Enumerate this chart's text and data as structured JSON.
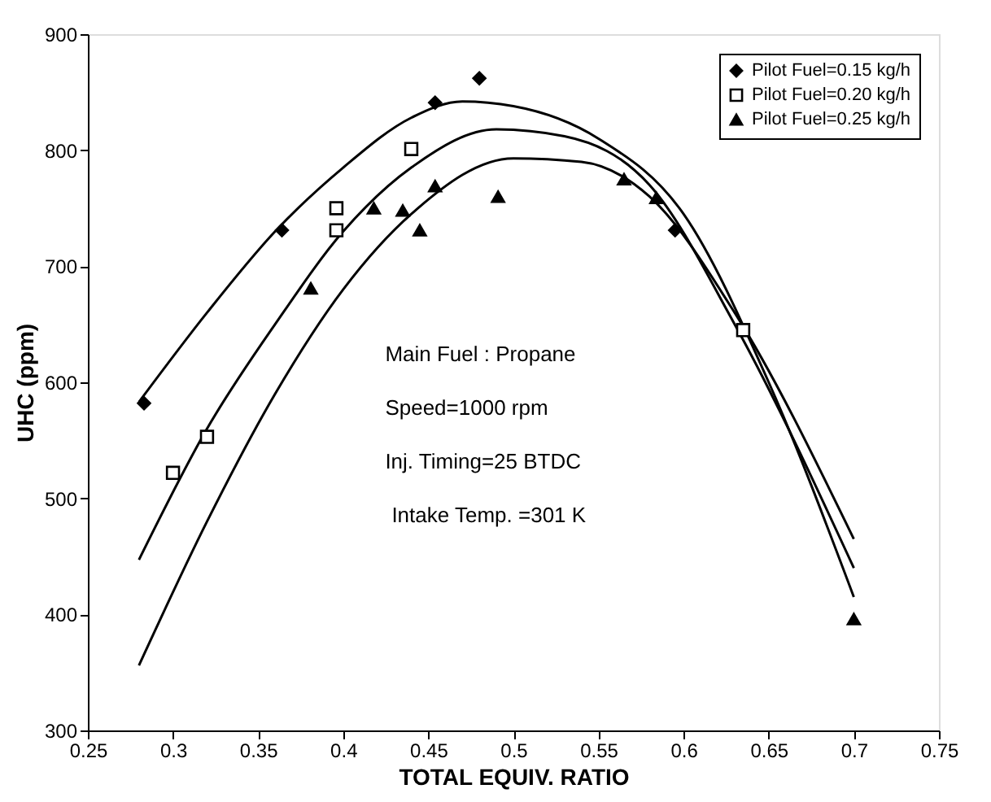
{
  "chart_data": {
    "type": "scatter",
    "xlabel": "TOTAL EQUIV. RATIO",
    "ylabel": "UHC (ppm)",
    "xlim": [
      0.25,
      0.75
    ],
    "xticks": [
      0.25,
      0.3,
      0.35,
      0.4,
      0.45,
      0.5,
      0.55,
      0.6,
      0.65,
      0.7,
      0.75
    ],
    "ylim": [
      300,
      900
    ],
    "yticks": [
      300,
      400,
      500,
      600,
      700,
      800,
      900
    ],
    "grid": false,
    "legend": "top right",
    "series": [
      {
        "name": "Pilot Fuel=0.15 kg/h",
        "marker": "diamond",
        "color": "#000000",
        "x": [
          0.283,
          0.364,
          0.454,
          0.48,
          0.595
        ],
        "values": [
          582,
          731,
          841,
          862,
          731
        ]
      },
      {
        "name": "Pilot Fuel=0.20 kg/h",
        "marker": "square",
        "color": "#000000",
        "x": [
          0.3,
          0.32,
          0.396,
          0.396,
          0.44,
          0.635
        ],
        "values": [
          522,
          553,
          750,
          731,
          801,
          645
        ]
      },
      {
        "name": "Pilot Fuel=0.25 kg/h",
        "marker": "triangle",
        "color": "#000000",
        "x": [
          0.381,
          0.418,
          0.435,
          0.445,
          0.454,
          0.491,
          0.565,
          0.584,
          0.7
        ],
        "values": [
          681,
          750,
          748,
          731,
          769,
          760,
          775,
          759,
          396
        ]
      },
      {
        "type": "line",
        "color": "#000000",
        "x": [
          0.28,
          0.32,
          0.36,
          0.4,
          0.44,
          0.47,
          0.5,
          0.55,
          0.6,
          0.65,
          0.7
        ],
        "values": [
          583,
          660,
          730,
          785,
          828,
          842,
          838,
          810,
          745,
          600,
          415
        ]
      },
      {
        "type": "line",
        "color": "#000000",
        "x": [
          0.28,
          0.32,
          0.36,
          0.4,
          0.44,
          0.49,
          0.53,
          0.58,
          0.63,
          0.7
        ],
        "values": [
          447,
          560,
          650,
          730,
          785,
          818,
          812,
          770,
          650,
          440
        ]
      },
      {
        "type": "line",
        "color": "#000000",
        "x": [
          0.28,
          0.32,
          0.36,
          0.4,
          0.44,
          0.5,
          0.54,
          0.58,
          0.63,
          0.7
        ],
        "values": [
          356,
          480,
          590,
          680,
          745,
          793,
          790,
          760,
          660,
          465
        ]
      }
    ],
    "annotations": [
      "Main Fuel : Propane",
      "Speed=1000 rpm",
      "Inj. Timing=25 BTDC",
      "Intake Temp. =301 K"
    ]
  }
}
